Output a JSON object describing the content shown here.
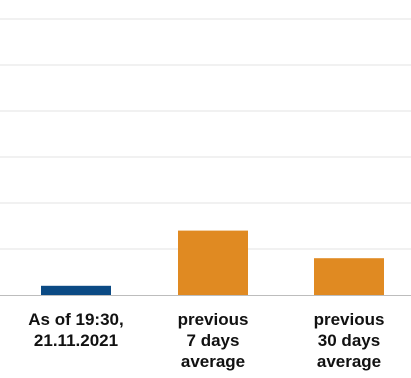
{
  "chart_data": {
    "type": "bar",
    "categories": [
      [
        "As of 19:30,",
        "21.11.2021"
      ],
      [
        "previous",
        "7 days",
        "average"
      ],
      [
        "previous",
        "30 days",
        "average"
      ]
    ],
    "values": [
      4,
      28,
      16
    ],
    "colors": [
      "#0b4a84",
      "#e08a22",
      "#e08a22"
    ],
    "gridline_color": "#e3e3e3",
    "axis_color": "#bdbdbd",
    "ylim": [
      0,
      120
    ],
    "gridline_step": 20,
    "grid": true
  }
}
